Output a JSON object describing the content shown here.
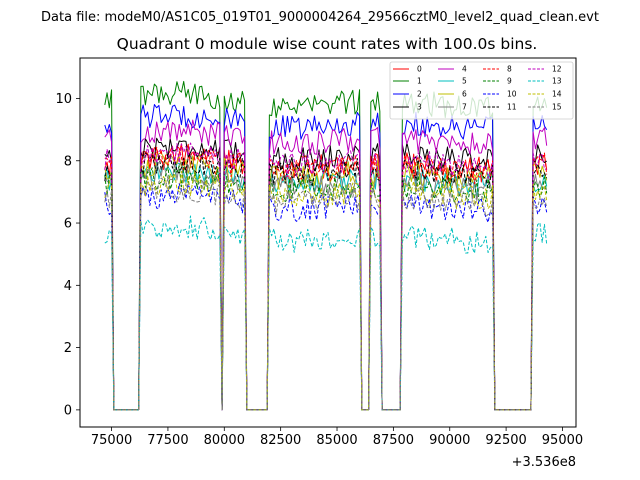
{
  "chart_data": {
    "type": "line",
    "suptitle": "Data file: modeM0/AS1C05_019T01_9000004264_29566cztM0_level2_quad_clean.evt",
    "title": "Quadrant 0 module wise count rates with 100.0s bins.",
    "xlabel": "",
    "ylabel": "",
    "x_offset_label": "+3.536e8",
    "xlim": [
      73600,
      95600
    ],
    "ylim": [
      -0.55,
      11.3
    ],
    "xticks": [
      75000,
      77500,
      80000,
      82500,
      85000,
      87500,
      90000,
      92500,
      95000
    ],
    "xtick_labels": [
      "75000",
      "77500",
      "80000",
      "82500",
      "85000",
      "87500",
      "90000",
      "92500",
      "95000"
    ],
    "yticks": [
      0,
      2,
      4,
      6,
      8,
      10
    ],
    "ytick_labels": [
      "0",
      "2",
      "4",
      "6",
      "8",
      "10"
    ],
    "legend_position": "top-right",
    "gaps": [
      [
        75000,
        76300
      ],
      [
        79800,
        80000
      ],
      [
        80950,
        82000
      ],
      [
        86050,
        86500
      ],
      [
        86950,
        87850
      ],
      [
        91950,
        93650
      ]
    ],
    "segments": [
      [
        74700,
        75000
      ],
      [
        76300,
        79800
      ],
      [
        80000,
        80950
      ],
      [
        82000,
        86050
      ],
      [
        86500,
        86950
      ],
      [
        87850,
        91950
      ],
      [
        93650,
        94350
      ]
    ],
    "bin_size_s": 100,
    "series": [
      {
        "name": "0",
        "color": "#ff0000",
        "style": "solid",
        "level": 7.9
      },
      {
        "name": "1",
        "color": "#008000",
        "style": "solid",
        "level": 9.9
      },
      {
        "name": "2",
        "color": "#0000ff",
        "style": "solid",
        "level": 9.2
      },
      {
        "name": "3",
        "color": "#000000",
        "style": "solid",
        "level": 8.2
      },
      {
        "name": "4",
        "color": "#bf00bf",
        "style": "solid",
        "level": 8.7
      },
      {
        "name": "5",
        "color": "#00bfbf",
        "style": "solid",
        "level": 7.4
      },
      {
        "name": "6",
        "color": "#bfbf00",
        "style": "solid",
        "level": 7.6
      },
      {
        "name": "7",
        "color": "#808080",
        "style": "solid",
        "level": 7.3
      },
      {
        "name": "8",
        "color": "#ff0000",
        "style": "dashed",
        "level": 7.8
      },
      {
        "name": "9",
        "color": "#008000",
        "style": "dashed",
        "level": 7.2
      },
      {
        "name": "10",
        "color": "#0000ff",
        "style": "dashed",
        "level": 6.6
      },
      {
        "name": "11",
        "color": "#000000",
        "style": "dashed",
        "level": 7.7
      },
      {
        "name": "12",
        "color": "#bf00bf",
        "style": "dashed",
        "level": 8.0
      },
      {
        "name": "13",
        "color": "#00bfbf",
        "style": "dashed",
        "level": 5.6
      },
      {
        "name": "14",
        "color": "#bfbf00",
        "style": "dashed",
        "level": 7.0
      },
      {
        "name": "15",
        "color": "#808080",
        "style": "dashed",
        "level": 6.8
      }
    ]
  }
}
